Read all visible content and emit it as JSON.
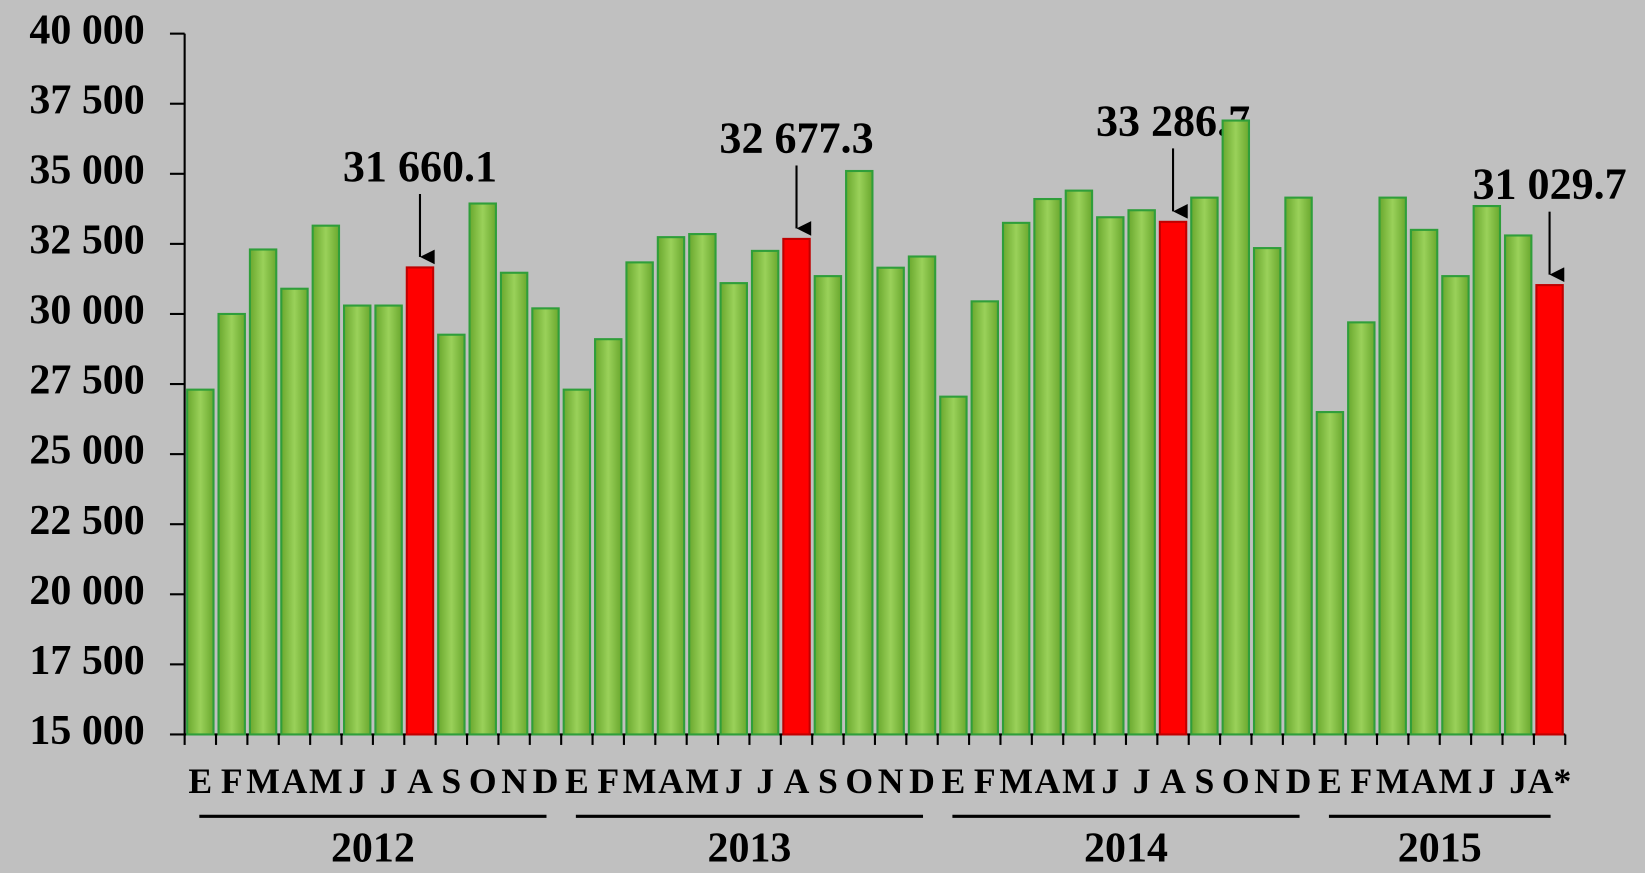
{
  "chart_data": {
    "type": "bar",
    "groups": [
      {
        "label": "2012",
        "categories": [
          "E",
          "F",
          "M",
          "A",
          "M",
          "J",
          "J",
          "A",
          "S",
          "O",
          "N",
          "D"
        ]
      },
      {
        "label": "2013",
        "categories": [
          "E",
          "F",
          "M",
          "A",
          "M",
          "J",
          "J",
          "A",
          "S",
          "O",
          "N",
          "D"
        ]
      },
      {
        "label": "2014",
        "categories": [
          "E",
          "F",
          "M",
          "A",
          "M",
          "J",
          "J",
          "A",
          "S",
          "O",
          "N",
          "D"
        ]
      },
      {
        "label": "2015",
        "categories": [
          "E",
          "F",
          "M",
          "A",
          "M",
          "J",
          "J",
          "A*"
        ]
      }
    ],
    "values": [
      27300,
      30000,
      32300,
      30900,
      33150,
      30300,
      30300,
      31660.1,
      29260,
      33940,
      31470,
      30200,
      27300,
      29100,
      31840,
      32740,
      32850,
      31100,
      32250,
      32677.3,
      31350,
      35100,
      31650,
      32050,
      27050,
      30450,
      33250,
      34100,
      34400,
      33450,
      33700,
      33286.7,
      34150,
      36900,
      32350,
      34150,
      26500,
      29700,
      34150,
      33000,
      31350,
      33850,
      32800,
      31029.7
    ],
    "value_labels": [
      null,
      null,
      null,
      null,
      null,
      null,
      null,
      "31 660.1",
      null,
      null,
      null,
      null,
      null,
      null,
      null,
      null,
      null,
      null,
      null,
      "32 677.3",
      null,
      null,
      null,
      null,
      null,
      null,
      null,
      null,
      null,
      null,
      null,
      "33 286.7",
      null,
      null,
      null,
      null,
      null,
      null,
      null,
      null,
      null,
      null,
      null,
      "31 029.7"
    ],
    "colors": [
      "#8bc34a",
      "#8bc34a",
      "#8bc34a",
      "#8bc34a",
      "#8bc34a",
      "#8bc34a",
      "#8bc34a",
      "#ff0000",
      "#8bc34a",
      "#8bc34a",
      "#8bc34a",
      "#8bc34a",
      "#8bc34a",
      "#8bc34a",
      "#8bc34a",
      "#8bc34a",
      "#8bc34a",
      "#8bc34a",
      "#8bc34a",
      "#ff0000",
      "#8bc34a",
      "#8bc34a",
      "#8bc34a",
      "#8bc34a",
      "#8bc34a",
      "#8bc34a",
      "#8bc34a",
      "#8bc34a",
      "#8bc34a",
      "#8bc34a",
      "#8bc34a",
      "#ff0000",
      "#8bc34a",
      "#8bc34a",
      "#8bc34a",
      "#8bc34a",
      "#8bc34a",
      "#8bc34a",
      "#8bc34a",
      "#8bc34a",
      "#8bc34a",
      "#8bc34a",
      "#8bc34a",
      "#ff0000"
    ],
    "ylim": [
      15000,
      40000
    ],
    "yticks": [
      {
        "value": 15000,
        "label": "15 000"
      },
      {
        "value": 17500,
        "label": "17 500"
      },
      {
        "value": 20000,
        "label": "20 000"
      },
      {
        "value": 22500,
        "label": "22 500"
      },
      {
        "value": 25000,
        "label": "25 000"
      },
      {
        "value": 27500,
        "label": "27 500"
      },
      {
        "value": 30000,
        "label": "30 000"
      },
      {
        "value": 32500,
        "label": "32 500"
      },
      {
        "value": 35000,
        "label": "35 000"
      },
      {
        "value": 37500,
        "label": "37 500"
      },
      {
        "value": 40000,
        "label": "40 000"
      }
    ],
    "grid": false
  }
}
